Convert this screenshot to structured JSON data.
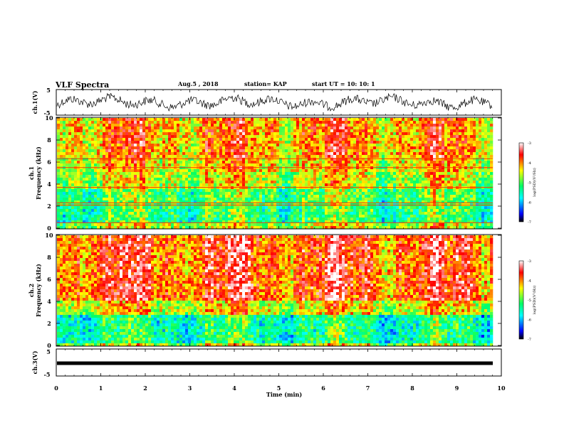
{
  "header": {
    "title": "VLF Spectra",
    "date": "Aug.5 , 2018",
    "station": "station= KAP",
    "start": "start UT = 10: 10: 1"
  },
  "chart_data": [
    {
      "type": "line",
      "name": "ch1-waveform",
      "ylabel": "ch.1(V)",
      "ylim": [
        -5,
        5
      ],
      "yticks": [
        "5",
        "-5"
      ],
      "xlim": [
        0,
        10
      ],
      "description_values": {
        "mean": 0,
        "amplitude": 3
      }
    },
    {
      "type": "heatmap",
      "name": "ch1-spectrogram",
      "ylabel": "ch.1 Frequency (kHz)",
      "ylim": [
        0,
        10
      ],
      "yticks": [
        "0",
        "2",
        "4",
        "6",
        "8",
        "10"
      ],
      "xlim": [
        0,
        9.82
      ],
      "colorbar": {
        "label": "log(PSD)(V²/Hz)",
        "range": [
          -7,
          -3
        ],
        "ticks": [
          "-3",
          "-4",
          "-5",
          "-6",
          "-7"
        ]
      },
      "horizontal_lines_khz": [
        0.5,
        2.1,
        2.3,
        3.7,
        5.5,
        6.3
      ]
    },
    {
      "type": "heatmap",
      "name": "ch2-spectrogram",
      "ylabel": "ch.2 Frequency (kHz)",
      "ylim": [
        0,
        10
      ],
      "yticks": [
        "0",
        "2",
        "4",
        "6",
        "8",
        "10"
      ],
      "xlim": [
        0,
        9.82
      ],
      "colorbar": {
        "label": "log(PSD)(V²/Hz)",
        "range": [
          -7,
          -3
        ],
        "ticks": [
          "-3",
          "-4",
          "-5",
          "-6",
          "-7"
        ]
      }
    },
    {
      "type": "line",
      "name": "ch3-waveform",
      "ylabel": "ch.3(V)",
      "ylim": [
        -5,
        5
      ],
      "yticks": [
        "5",
        "-5"
      ],
      "xlim": [
        0,
        10
      ],
      "constant_value": 0
    }
  ],
  "x_axis": {
    "label": "Time (min)",
    "ticks": [
      "0",
      "1",
      "2",
      "3",
      "4",
      "5",
      "6",
      "7",
      "8",
      "9",
      "10"
    ]
  },
  "colors": {
    "scale": [
      "#000000",
      "#0000ff",
      "#00ffff",
      "#00ff66",
      "#ffff00",
      "#ff0000",
      "#ffffff"
    ]
  }
}
